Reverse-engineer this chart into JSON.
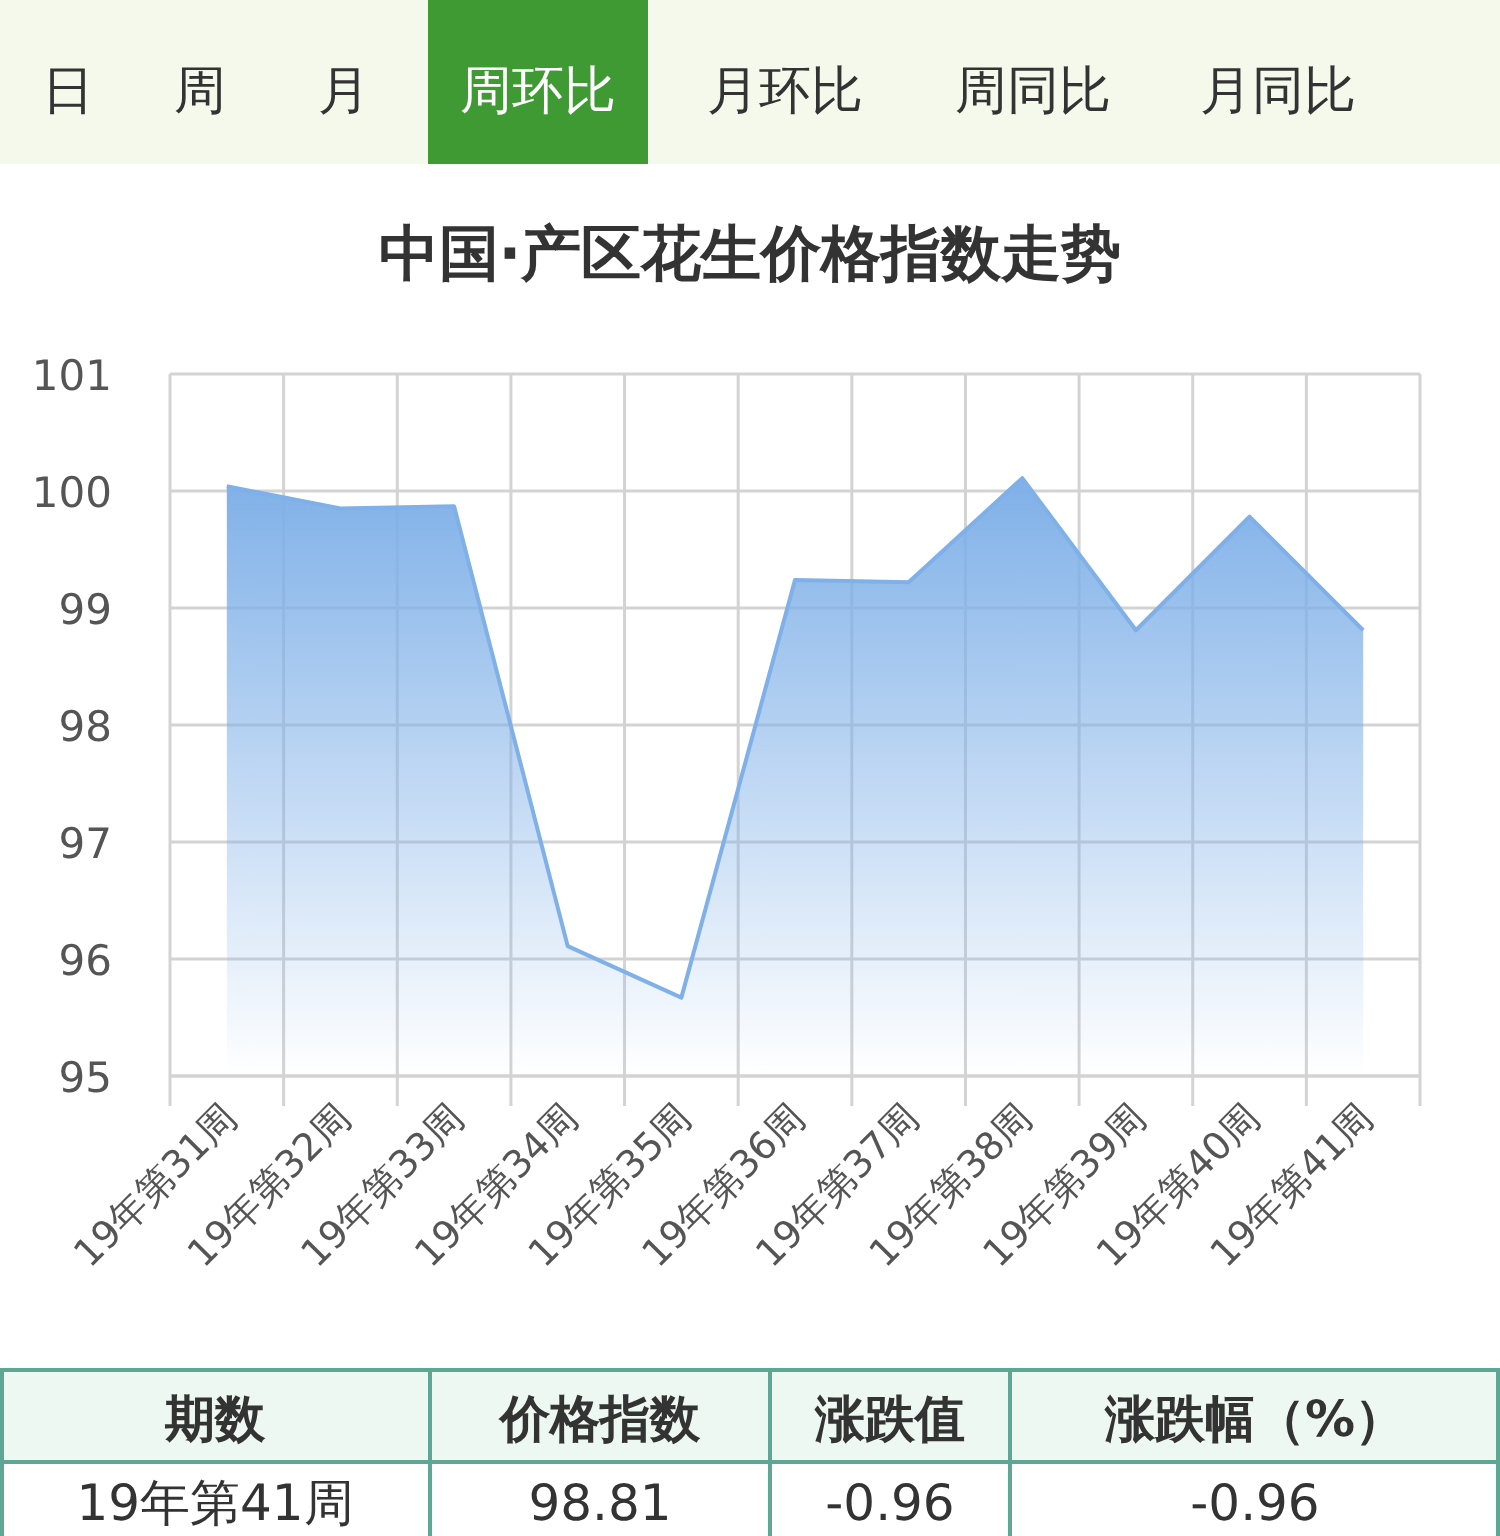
{
  "chart_data": {
    "type": "area",
    "title": "中国·产区花生价格指数走势",
    "categories": [
      "19年第31周",
      "19年第32周",
      "19年第33周",
      "19年第34周",
      "19年第35周",
      "19年第36周",
      "19年第37周",
      "19年第38周",
      "19年第39周",
      "19年第40周",
      "19年第41周"
    ],
    "series": [
      {
        "color": "#7fb0e8",
        "values": [
          100.04,
          99.85,
          99.87,
          96.11,
          95.67,
          99.24,
          99.22,
          100.11,
          98.81,
          99.78,
          98.81
        ]
      }
    ],
    "ylim": [
      95,
      101
    ],
    "yticks": [
      95,
      96,
      97,
      98,
      99,
      100,
      101
    ],
    "grid": true,
    "marker": "none",
    "annotations": [
      "日",
      "周",
      "月",
      "周环比",
      "月环比",
      "周同比",
      "月同比",
      "期数",
      "价格指数",
      "涨跌值",
      "涨跌幅（%）",
      "19年第41周",
      "98.81",
      "-0.96",
      "-0.96"
    ]
  }
}
